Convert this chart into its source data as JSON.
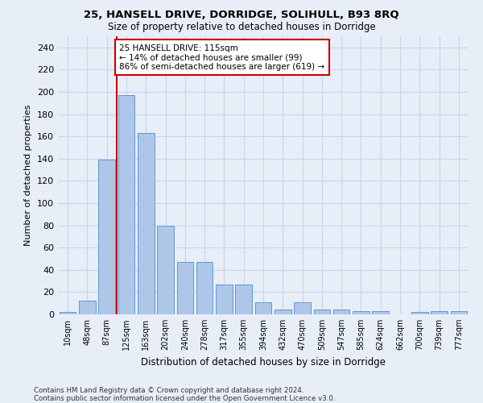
{
  "title1": "25, HANSELL DRIVE, DORRIDGE, SOLIHULL, B93 8RQ",
  "title2": "Size of property relative to detached houses in Dorridge",
  "xlabel": "Distribution of detached houses by size in Dorridge",
  "ylabel": "Number of detached properties",
  "bar_labels": [
    "10sqm",
    "48sqm",
    "87sqm",
    "125sqm",
    "163sqm",
    "202sqm",
    "240sqm",
    "278sqm",
    "317sqm",
    "355sqm",
    "394sqm",
    "432sqm",
    "470sqm",
    "509sqm",
    "547sqm",
    "585sqm",
    "624sqm",
    "662sqm",
    "700sqm",
    "739sqm",
    "777sqm"
  ],
  "bar_values": [
    2,
    12,
    139,
    197,
    163,
    80,
    47,
    47,
    27,
    27,
    11,
    4,
    11,
    4,
    4,
    3,
    3,
    0,
    2,
    3,
    3
  ],
  "bar_color": "#aec6e8",
  "bar_edge_color": "#5b9bd5",
  "annotation_text": "25 HANSELL DRIVE: 115sqm\n← 14% of detached houses are smaller (99)\n86% of semi-detached houses are larger (619) →",
  "annotation_box_color": "#ffffff",
  "annotation_box_edge_color": "#cc0000",
  "vline_color": "#cc0000",
  "grid_color": "#c8d4e8",
  "background_color": "#e8eef8",
  "footnote1": "Contains HM Land Registry data © Crown copyright and database right 2024.",
  "footnote2": "Contains public sector information licensed under the Open Government Licence v3.0.",
  "ylim": [
    0,
    250
  ],
  "yticks": [
    0,
    20,
    40,
    60,
    80,
    100,
    120,
    140,
    160,
    180,
    200,
    220,
    240
  ],
  "vline_index": 2.5
}
